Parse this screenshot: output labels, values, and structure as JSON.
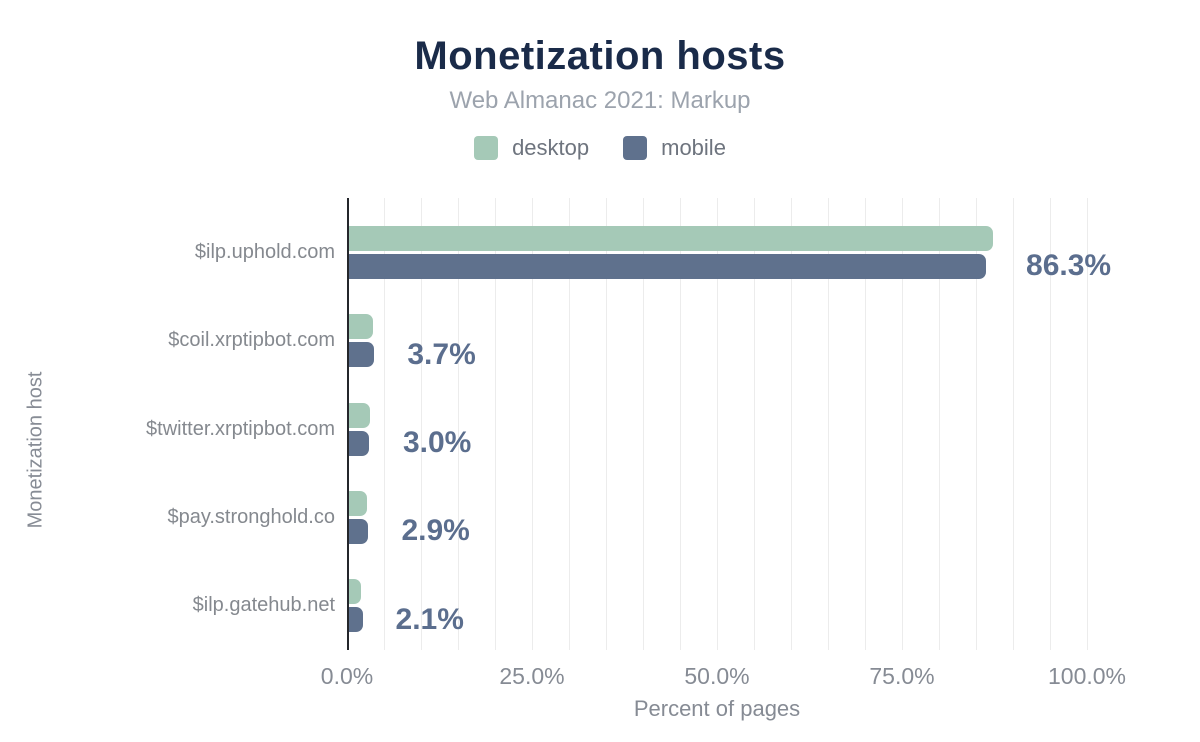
{
  "header": {
    "title": "Monetization hosts",
    "subtitle": "Web Almanac 2021: Markup"
  },
  "legend": [
    {
      "label": "desktop",
      "color": "#a5c9b7"
    },
    {
      "label": "mobile",
      "color": "#5f718d"
    }
  ],
  "chart_data": {
    "type": "bar",
    "orientation": "horizontal",
    "title": "Monetization hosts",
    "subtitle": "Web Almanac 2021: Markup",
    "categories": [
      "$ilp.uphold.com",
      "$coil.xrptipbot.com",
      "$twitter.xrptipbot.com",
      "$pay.stronghold.co",
      "$ilp.gatehub.net"
    ],
    "series": [
      {
        "name": "desktop",
        "color": "#a5c9b7",
        "values": [
          87.3,
          3.5,
          3.1,
          2.7,
          1.9
        ]
      },
      {
        "name": "mobile",
        "color": "#5f718d",
        "values": [
          86.3,
          3.7,
          3.0,
          2.9,
          2.1
        ]
      }
    ],
    "bar_labels": [
      "86.3%",
      "3.7%",
      "3.0%",
      "2.9%",
      "2.1%"
    ],
    "xlabel": "Percent of pages",
    "ylabel": "Monetization host",
    "xlim": [
      0,
      111
    ],
    "x_ticks": [
      {
        "value": 0,
        "label": "0.0%"
      },
      {
        "value": 25,
        "label": "25.0%"
      },
      {
        "value": 50,
        "label": "50.0%"
      },
      {
        "value": 75,
        "label": "75.0%"
      },
      {
        "value": 100,
        "label": "100.0%"
      }
    ],
    "gridline_step_percent": 5,
    "grid": true,
    "legend_position": "top"
  },
  "colors": {
    "title": "#1a2b49",
    "subtitle": "#9ca3ad",
    "axis_text": "#868b94",
    "category_text": "#85898f",
    "value_label": "#5b6e8e",
    "gridline": "#ececec",
    "axis_line": "#24262b",
    "desktop": "#a5c9b7",
    "mobile": "#5f718d"
  }
}
